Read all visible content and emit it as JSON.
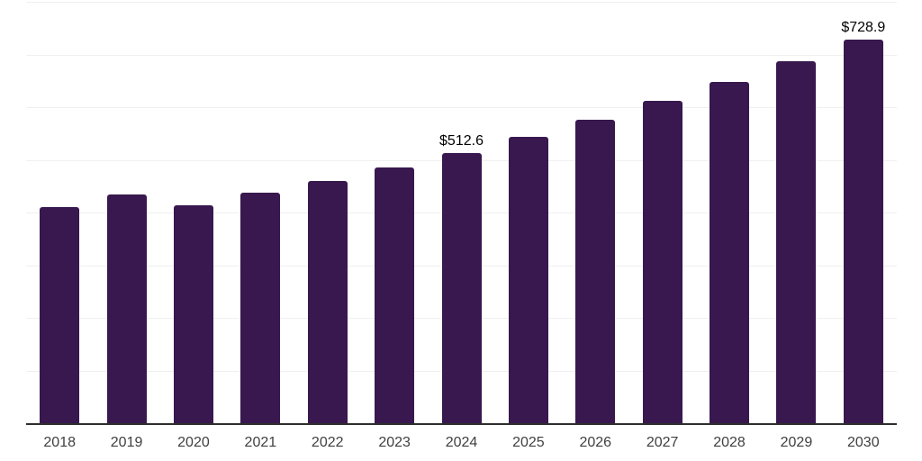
{
  "chart_data": {
    "type": "bar",
    "title": "",
    "xlabel": "",
    "ylabel": "",
    "categories": [
      "2018",
      "2019",
      "2020",
      "2021",
      "2022",
      "2023",
      "2024",
      "2025",
      "2026",
      "2027",
      "2028",
      "2029",
      "2030"
    ],
    "values": [
      410.3,
      433.4,
      413.0,
      437.3,
      459.1,
      485.9,
      512.6,
      543.6,
      576.4,
      611.3,
      648.2,
      687.4,
      728.9
    ],
    "annotations": [
      {
        "category": "2024",
        "text": "$512.6"
      },
      {
        "category": "2030",
        "text": "$728.9"
      }
    ],
    "ylim": [
      0,
      800
    ],
    "grid": {
      "horizontal": true,
      "step": 100,
      "visible": true
    },
    "legend": {
      "visible": false
    },
    "colors": {
      "bar": "#38184E",
      "gridline": "#f0f0f0",
      "axis_line": "#2e2e2e",
      "tick_label": "#404040",
      "value_label": "#000000",
      "background": "#ffffff"
    }
  }
}
